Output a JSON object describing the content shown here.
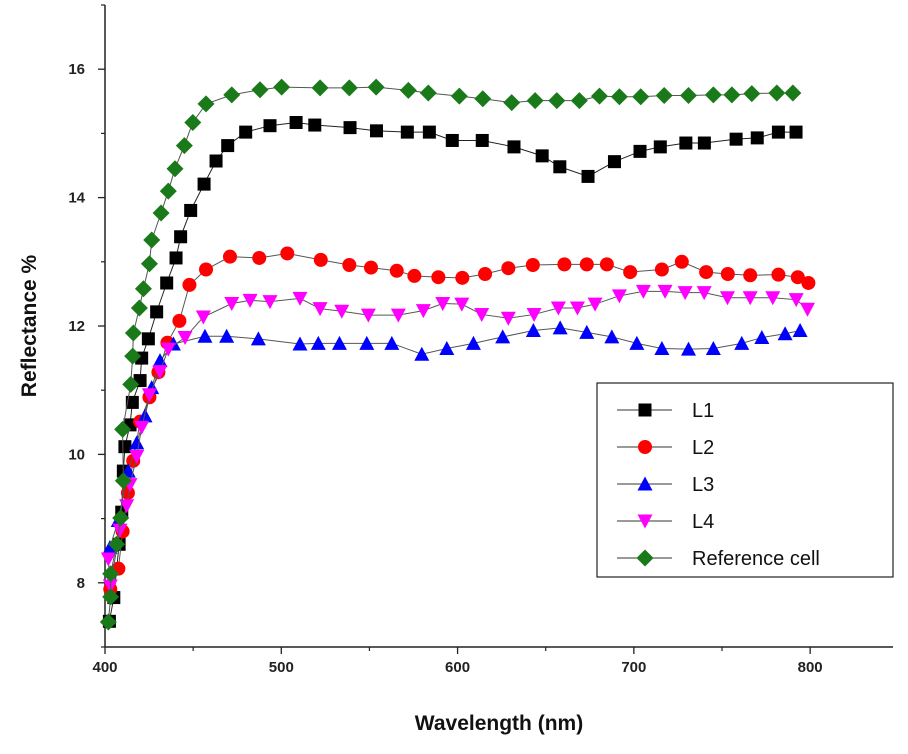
{
  "chart_data": {
    "type": "line",
    "title": "",
    "xlabel": "Wavelength (nm)",
    "ylabel": "Reflectance %",
    "xlim": [
      400,
      847
    ],
    "ylim": [
      7,
      17
    ],
    "xticks": [
      "400",
      "500",
      "600",
      "700",
      "800"
    ],
    "yticks": [
      "8",
      "10",
      "12",
      "14",
      "16"
    ],
    "grid": false,
    "legend_position": "right-middle",
    "series": [
      {
        "name": "L1",
        "color": "#000000",
        "marker": "square",
        "x": [
          402.5,
          405,
          408,
          409.5,
          410.4,
          411.3,
          414.2,
          415.5,
          419.9,
          420.8,
          424.6,
          429.3,
          435,
          440.3,
          442.9,
          448.6,
          456.2,
          463,
          469.6,
          479.8,
          493.6,
          508.4,
          519,
          539,
          554,
          571.5,
          584,
          597,
          614,
          632,
          648,
          658,
          674,
          689,
          703.5,
          715,
          729.5,
          740,
          758,
          770,
          782,
          792
        ],
        "y": [
          7.4,
          7.77,
          8.6,
          9.1,
          9.74,
          10.12,
          10.46,
          10.81,
          11.15,
          11.5,
          11.8,
          12.22,
          12.67,
          13.06,
          13.39,
          13.8,
          14.21,
          14.57,
          14.81,
          15.02,
          15.12,
          15.17,
          15.13,
          15.09,
          15.04,
          15.02,
          15.02,
          14.89,
          14.89,
          14.79,
          14.65,
          14.48,
          14.33,
          14.56,
          14.72,
          14.79,
          14.85,
          14.85,
          14.91,
          14.93,
          15.02,
          15.02
        ]
      },
      {
        "name": "L2",
        "color": "#ff0000",
        "marker": "circle",
        "x": [
          403,
          407.6,
          410,
          413,
          416,
          419.9,
          425.2,
          430.3,
          435.4,
          442.2,
          447.9,
          457.3,
          470.9,
          487.5,
          503.4,
          522.4,
          538.6,
          550.9,
          565.5,
          575.5,
          589.1,
          602.7,
          615.6,
          628.8,
          642.7,
          660.6,
          673.3,
          684.7,
          697.9,
          715.9,
          727.2,
          741,
          753.3,
          766,
          782,
          793,
          799
        ],
        "y": [
          7.9,
          8.22,
          8.8,
          9.4,
          9.9,
          10.51,
          10.89,
          11.28,
          11.74,
          12.08,
          12.64,
          12.88,
          13.08,
          13.06,
          13.13,
          13.03,
          12.95,
          12.91,
          12.86,
          12.78,
          12.76,
          12.75,
          12.81,
          12.9,
          12.95,
          12.96,
          12.96,
          12.96,
          12.84,
          12.88,
          13.0,
          12.84,
          12.81,
          12.79,
          12.8,
          12.76,
          12.67
        ]
      },
      {
        "name": "L3",
        "color": "#0000ff",
        "marker": "triangle-up",
        "x": [
          402.8,
          407.5,
          413.2,
          418,
          422.7,
          426.5,
          431.2,
          438.8,
          456.7,
          469,
          487,
          510.6,
          521,
          533,
          548.5,
          562.7,
          579.7,
          593.9,
          609,
          625.6,
          643,
          658.2,
          673.3,
          687.5,
          701.7,
          715.9,
          731,
          745.1,
          761.2,
          772.6,
          785.8,
          794.3
        ],
        "y": [
          8.55,
          8.97,
          9.74,
          10.18,
          10.6,
          11.04,
          11.46,
          11.72,
          11.84,
          11.84,
          11.8,
          11.72,
          11.73,
          11.73,
          11.73,
          11.73,
          11.56,
          11.65,
          11.73,
          11.83,
          11.93,
          11.97,
          11.9,
          11.83,
          11.73,
          11.65,
          11.64,
          11.65,
          11.73,
          11.82,
          11.88,
          11.93
        ]
      },
      {
        "name": "L4",
        "color": "#ff00ff",
        "marker": "triangle-down",
        "x": [
          401.9,
          403,
          408.5,
          412.3,
          414.2,
          418,
          420.8,
          425.2,
          431.2,
          435.9,
          445.4,
          455.8,
          471.9,
          482.3,
          493.6,
          510.6,
          522,
          534.3,
          549.4,
          566.4,
          580.6,
          591.6,
          602.4,
          613.7,
          628.8,
          643.4,
          657.2,
          668,
          678,
          691.8,
          705.4,
          717.7,
          729.1,
          739.9,
          753.1,
          766,
          778.8,
          792.1,
          798.5
        ],
        "y": [
          8.37,
          7.95,
          8.82,
          9.2,
          9.53,
          9.97,
          10.42,
          10.93,
          11.29,
          11.64,
          11.82,
          12.14,
          12.35,
          12.4,
          12.38,
          12.43,
          12.27,
          12.23,
          12.17,
          12.17,
          12.24,
          12.35,
          12.34,
          12.18,
          12.12,
          12.18,
          12.28,
          12.28,
          12.34,
          12.47,
          12.54,
          12.54,
          12.52,
          12.52,
          12.44,
          12.44,
          12.44,
          12.41,
          12.26
        ]
      },
      {
        "name": "Reference cell",
        "color": "#1a7a1a",
        "marker": "diamond",
        "x": [
          401.9,
          403.2,
          403.2,
          406.6,
          408.9,
          410.4,
          410,
          414.6,
          415.7,
          416.1,
          419.5,
          421.8,
          425.2,
          426.5,
          431.8,
          435.9,
          439.7,
          445,
          449.8,
          457.3,
          471.9,
          487.9,
          500.2,
          522,
          538.6,
          553.8,
          572.1,
          583.4,
          601,
          614.3,
          630.7,
          644,
          656.3,
          669.1,
          680.5,
          691.8,
          703.9,
          717.2,
          731,
          745.1,
          755.6,
          766.9,
          781.1,
          790.2
        ],
        "y": [
          7.39,
          7.78,
          8.14,
          8.6,
          9.01,
          9.59,
          10.39,
          11.09,
          11.53,
          11.89,
          12.28,
          12.58,
          12.97,
          13.34,
          13.76,
          14.1,
          14.45,
          14.81,
          15.17,
          15.46,
          15.6,
          15.68,
          15.72,
          15.71,
          15.71,
          15.72,
          15.67,
          15.63,
          15.58,
          15.54,
          15.48,
          15.51,
          15.51,
          15.51,
          15.58,
          15.57,
          15.57,
          15.59,
          15.59,
          15.6,
          15.6,
          15.62,
          15.63,
          15.63
        ]
      }
    ]
  }
}
